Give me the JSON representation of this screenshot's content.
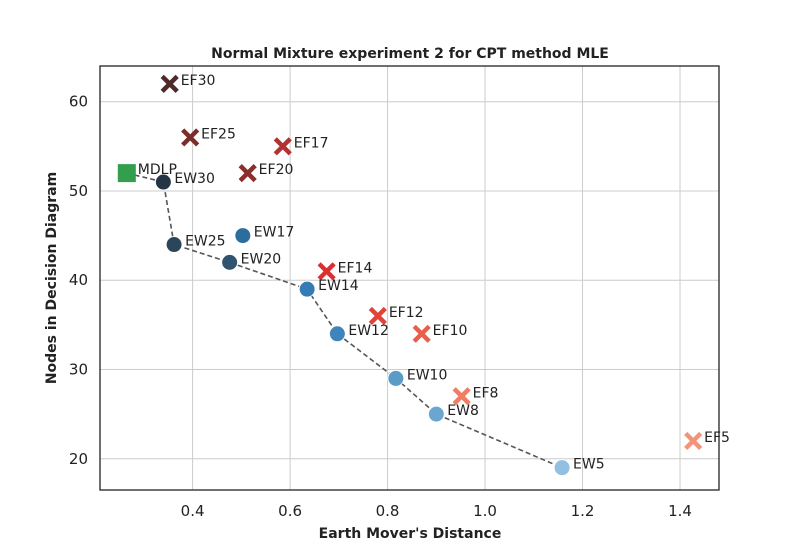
{
  "chart_data": {
    "type": "scatter",
    "title": "Normal Mixture experiment 2 for CPT method MLE",
    "xlabel": "Earth Mover's Distance",
    "ylabel": "Nodes in Decision Diagram",
    "xlim": [
      0.21,
      1.48
    ],
    "ylim": [
      16.5,
      64.0
    ],
    "xticks": [
      0.4,
      0.6,
      0.8,
      1.0,
      1.2,
      1.4
    ],
    "xtick_labels": [
      "0.4",
      "0.6",
      "0.8",
      "1.0",
      "1.2",
      "1.4"
    ],
    "yticks": [
      20,
      30,
      40,
      50,
      60
    ],
    "ytick_labels": [
      "20",
      "30",
      "40",
      "50",
      "60"
    ],
    "grid": true,
    "legend": "none",
    "frontier_path": [
      [
        0.265,
        52
      ],
      [
        0.34,
        51
      ],
      [
        0.362,
        44
      ],
      [
        0.476,
        42
      ],
      [
        0.635,
        39
      ],
      [
        0.697,
        34
      ],
      [
        0.817,
        29
      ],
      [
        0.9,
        25
      ],
      [
        1.158,
        19
      ]
    ],
    "series": [
      {
        "marker": "circle",
        "points": [
          {
            "label": "EW30",
            "x": 0.34,
            "y": 51,
            "color": "#263545"
          },
          {
            "label": "EW25",
            "x": 0.362,
            "y": 44,
            "color": "#2c4659"
          },
          {
            "label": "EW20",
            "x": 0.476,
            "y": 42,
            "color": "#2f546f"
          },
          {
            "label": "EW17",
            "x": 0.503,
            "y": 45,
            "color": "#2c6d9e"
          },
          {
            "label": "EW14",
            "x": 0.635,
            "y": 39,
            "color": "#347cb3"
          },
          {
            "label": "EW12",
            "x": 0.697,
            "y": 34,
            "color": "#3f85bb"
          },
          {
            "label": "EW10",
            "x": 0.817,
            "y": 29,
            "color": "#5a9bc7"
          },
          {
            "label": "EW8",
            "x": 0.9,
            "y": 25,
            "color": "#6aa7d0"
          },
          {
            "label": "EW5",
            "x": 1.158,
            "y": 19,
            "color": "#93bfe0"
          }
        ]
      },
      {
        "marker": "x",
        "points": [
          {
            "label": "EF30",
            "x": 0.353,
            "y": 62,
            "color": "#4e2a2a"
          },
          {
            "label": "EF25",
            "x": 0.395,
            "y": 56,
            "color": "#7a2e2c"
          },
          {
            "label": "EF20",
            "x": 0.513,
            "y": 52,
            "color": "#8c2f2c"
          },
          {
            "label": "EF17",
            "x": 0.585,
            "y": 55,
            "color": "#b33230"
          },
          {
            "label": "EF14",
            "x": 0.675,
            "y": 41,
            "color": "#d93130"
          },
          {
            "label": "EF12",
            "x": 0.78,
            "y": 36,
            "color": "#e14437"
          },
          {
            "label": "EF10",
            "x": 0.87,
            "y": 34,
            "color": "#e8604a"
          },
          {
            "label": "EF8",
            "x": 0.952,
            "y": 27,
            "color": "#f07d62"
          },
          {
            "label": "EF5",
            "x": 1.427,
            "y": 22,
            "color": "#f39378"
          }
        ]
      },
      {
        "marker": "square",
        "points": [
          {
            "label": "MDLP",
            "x": 0.265,
            "y": 52,
            "color": "#339e4d"
          }
        ]
      }
    ]
  }
}
